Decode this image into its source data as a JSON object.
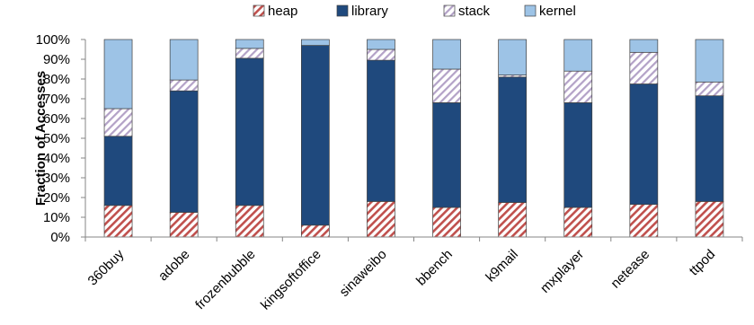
{
  "chart_data": {
    "type": "bar",
    "stacked": true,
    "categories": [
      "360buy",
      "adobe",
      "frozenbubble",
      "kingsoftoffice",
      "sinaweibo",
      "bbench",
      "k9mail",
      "mxplayer",
      "netease",
      "ttpod"
    ],
    "series": [
      {
        "name": "heap",
        "fill": "hatch-red",
        "color": "#c0504d",
        "values": [
          16,
          12.5,
          16,
          6,
          18,
          15,
          17.5,
          15,
          16.5,
          18
        ]
      },
      {
        "name": "library",
        "fill": "solid",
        "color": "#1f497d",
        "values": [
          35,
          61.5,
          74.5,
          91,
          71.5,
          53,
          63.5,
          53,
          61,
          53.5
        ]
      },
      {
        "name": "stack",
        "fill": "hatch-purple",
        "color": "#8064a2",
        "values": [
          14,
          5.5,
          5,
          0,
          5.5,
          17,
          1,
          16,
          16,
          7
        ]
      },
      {
        "name": "kernel",
        "fill": "solid",
        "color": "#9dc3e6",
        "values": [
          35,
          20.5,
          4.5,
          3,
          5,
          15,
          18,
          16,
          6.5,
          21.5
        ]
      }
    ],
    "ylabel": "Fraction of Accesses",
    "xlabel": "",
    "ylim": [
      0,
      100
    ],
    "yticks": [
      "0%",
      "10%",
      "20%",
      "30%",
      "40%",
      "50%",
      "60%",
      "70%",
      "80%",
      "90%",
      "100%"
    ],
    "grid": false,
    "legend_position": "top"
  }
}
